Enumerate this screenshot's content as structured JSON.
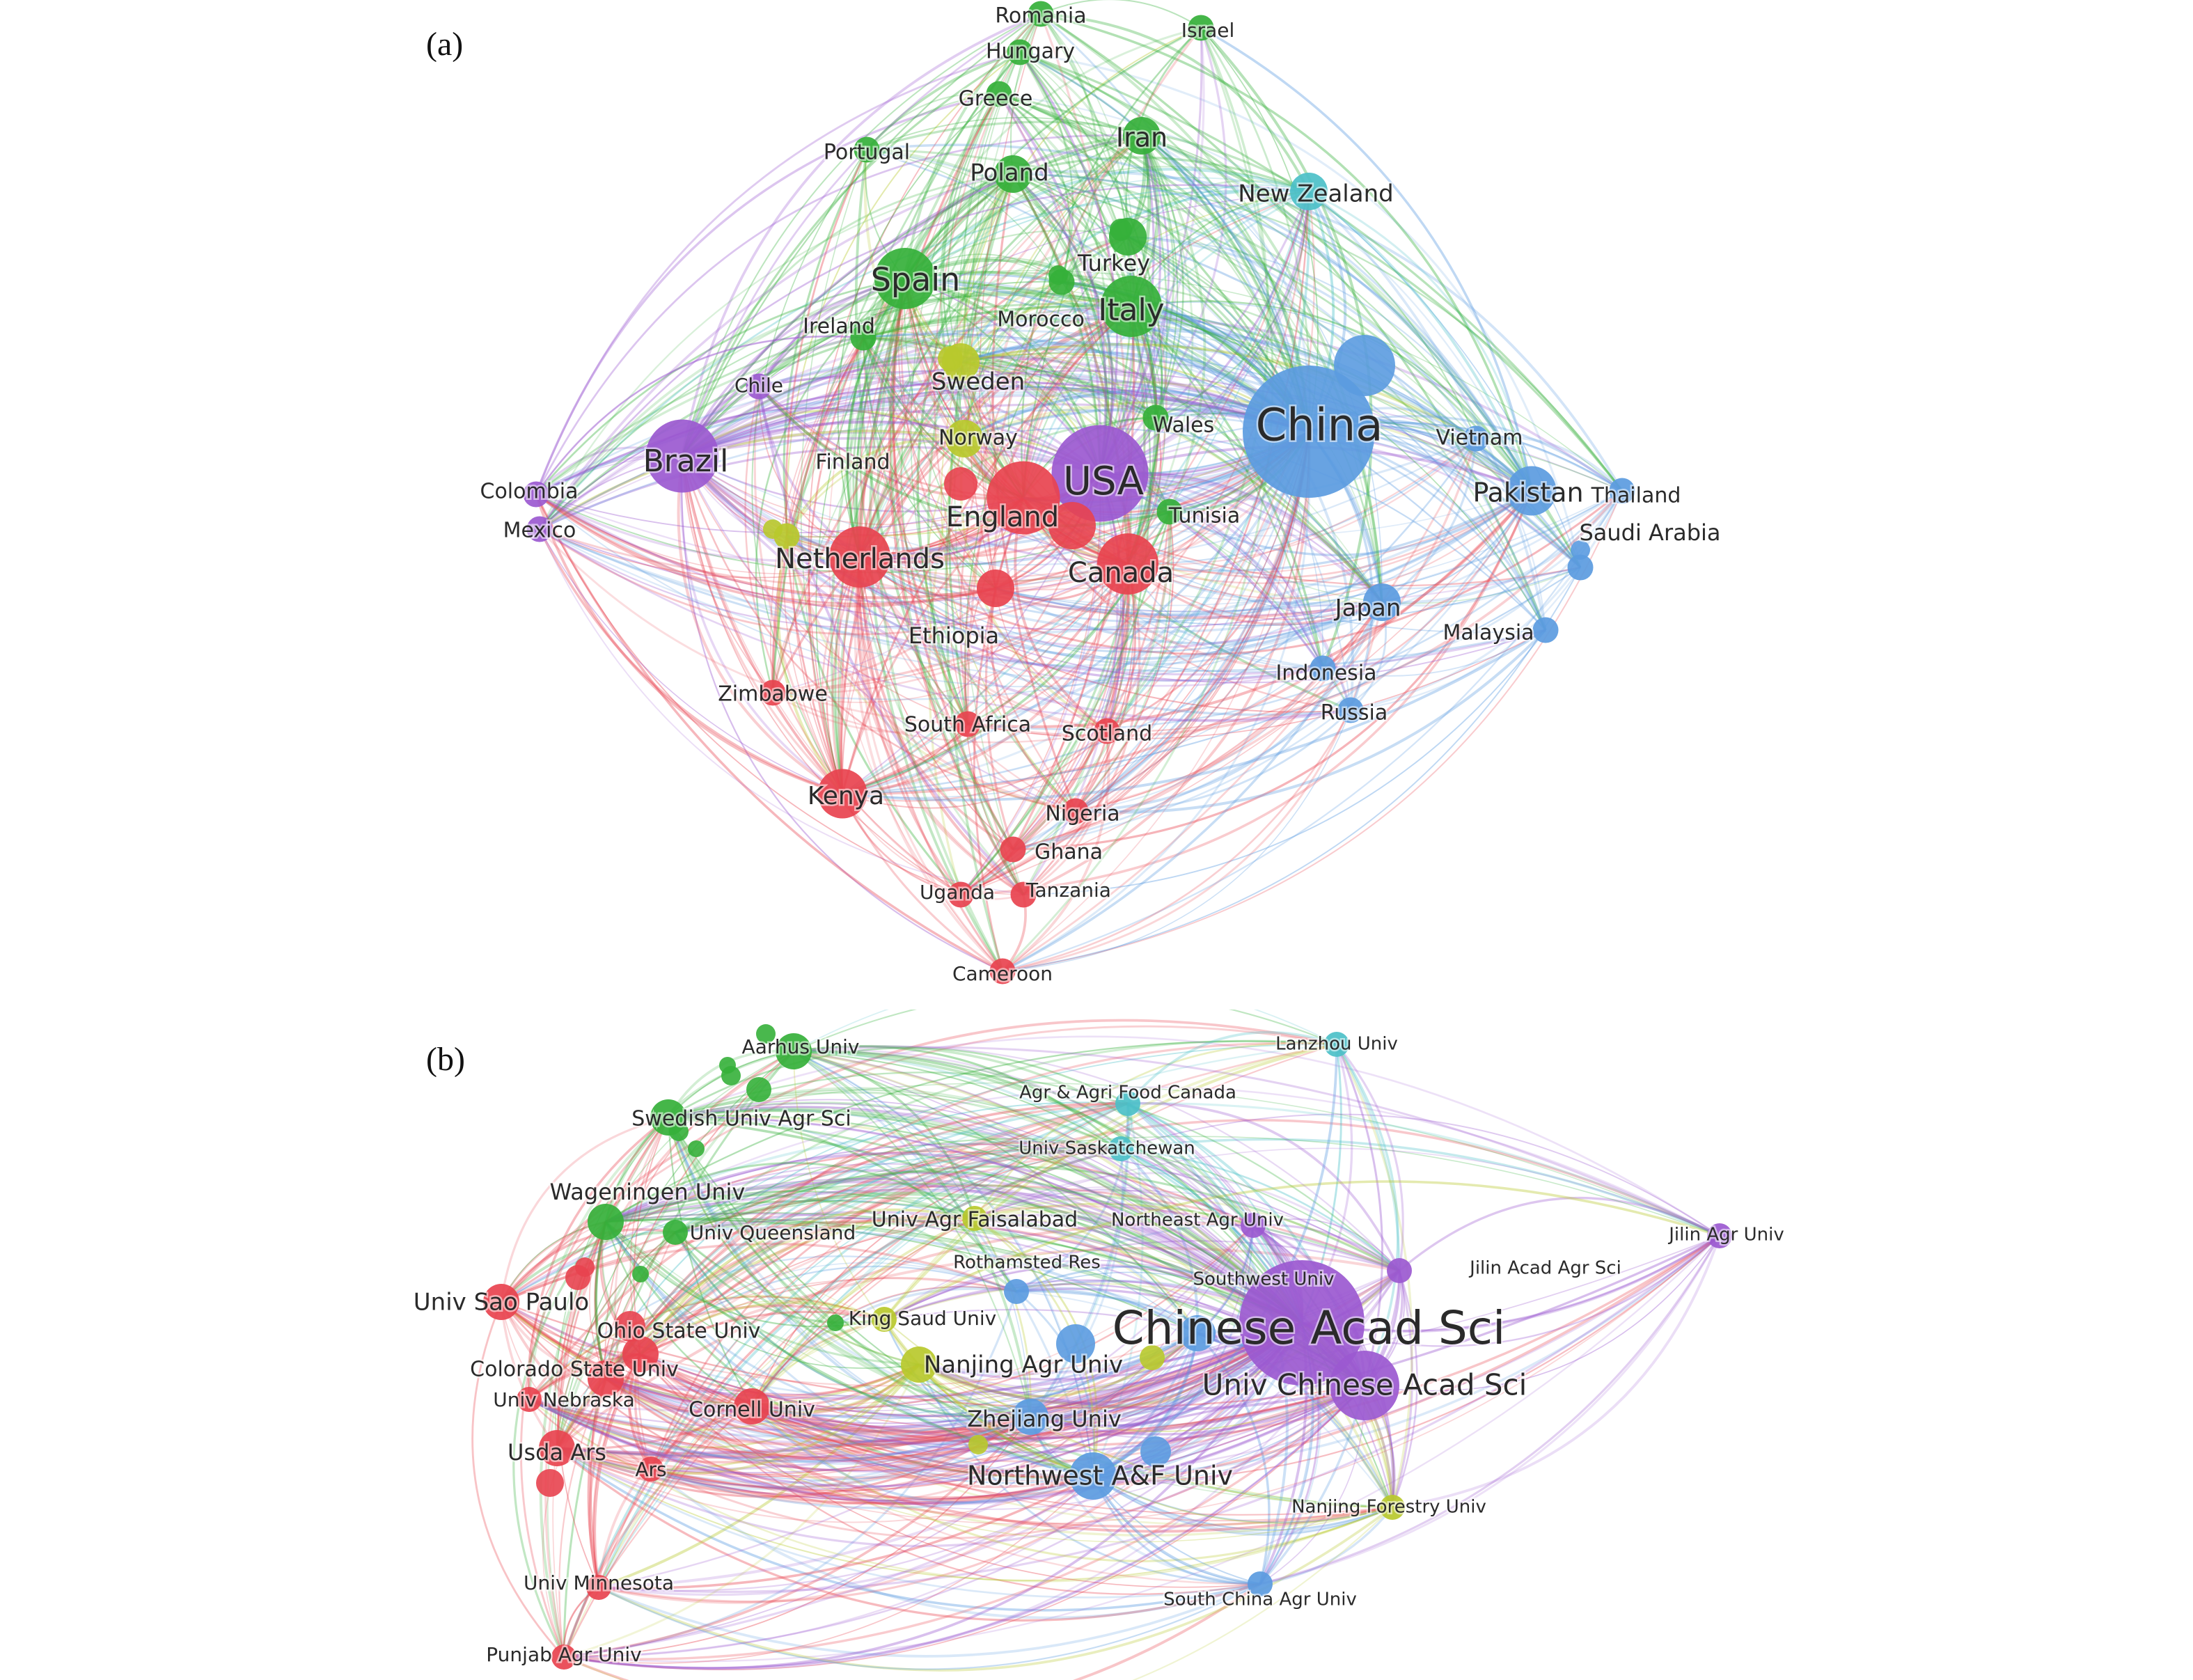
{
  "panels": [
    {
      "label": "(a)",
      "colors": {
        "red": "#e8434f",
        "green": "#35b03a",
        "blue": "#5b9be0",
        "yellow": "#b8c92c",
        "purple": "#9b59d0",
        "cyan": "#4cc0c8"
      },
      "nodes": [
        {
          "id": "china",
          "label": "China",
          "cluster": "blue",
          "w": 10
        },
        {
          "id": "usa",
          "label": "USA",
          "cluster": "purple",
          "w": 7
        },
        {
          "id": "england",
          "label": "England",
          "cluster": "red",
          "w": 5
        },
        {
          "id": "canada",
          "label": "Canada",
          "cluster": "red",
          "w": 4
        },
        {
          "id": "netherlands",
          "label": "Netherlands",
          "cluster": "red",
          "w": 4
        },
        {
          "id": "spain",
          "label": "Spain",
          "cluster": "green",
          "w": 4
        },
        {
          "id": "italy",
          "label": "Italy",
          "cluster": "green",
          "w": 4
        },
        {
          "id": "brazil",
          "label": "Brazil",
          "cluster": "purple",
          "w": 5
        },
        {
          "id": "pakistan",
          "label": "Pakistan",
          "cluster": "blue",
          "w": 3
        },
        {
          "id": "kenya",
          "label": "Kenya",
          "cluster": "red",
          "w": 3
        },
        {
          "id": "ethiopia",
          "label": "Ethiopia",
          "cluster": "red",
          "w": 2
        },
        {
          "id": "iran",
          "label": "Iran",
          "cluster": "green",
          "w": 2
        },
        {
          "id": "poland",
          "label": "Poland",
          "cluster": "green",
          "w": 2
        },
        {
          "id": "turkey",
          "label": "Turkey",
          "cluster": "green",
          "w": 2
        },
        {
          "id": "sweden",
          "label": "Sweden",
          "cluster": "yellow",
          "w": 2
        },
        {
          "id": "norway",
          "label": "Norway",
          "cluster": "yellow",
          "w": 2
        },
        {
          "id": "finland",
          "label": "Finland",
          "cluster": "yellow",
          "w": 1
        },
        {
          "id": "japan",
          "label": "Japan",
          "cluster": "blue",
          "w": 2
        },
        {
          "id": "newzealand",
          "label": "New Zealand",
          "cluster": "cyan",
          "w": 2
        },
        {
          "id": "vietnam",
          "label": "Vietnam",
          "cluster": "blue",
          "w": 1
        },
        {
          "id": "thailand",
          "label": "Thailand",
          "cluster": "blue",
          "w": 1
        },
        {
          "id": "saudiarabia",
          "label": "Saudi Arabia",
          "cluster": "blue",
          "w": 1
        },
        {
          "id": "malaysia",
          "label": "Malaysia",
          "cluster": "blue",
          "w": 1
        },
        {
          "id": "indonesia",
          "label": "Indonesia",
          "cluster": "blue",
          "w": 1
        },
        {
          "id": "russia",
          "label": "Russia",
          "cluster": "blue",
          "w": 1
        },
        {
          "id": "wales",
          "label": "Wales",
          "cluster": "green",
          "w": 1
        },
        {
          "id": "tunisia",
          "label": "Tunisia",
          "cluster": "green",
          "w": 1
        },
        {
          "id": "morocco",
          "label": "Morocco",
          "cluster": "green",
          "w": 1
        },
        {
          "id": "ireland",
          "label": "Ireland",
          "cluster": "green",
          "w": 1
        },
        {
          "id": "portugal",
          "label": "Portugal",
          "cluster": "green",
          "w": 1
        },
        {
          "id": "greece",
          "label": "Greece",
          "cluster": "green",
          "w": 1
        },
        {
          "id": "hungary",
          "label": "Hungary",
          "cluster": "green",
          "w": 1
        },
        {
          "id": "romania",
          "label": "Romania",
          "cluster": "green",
          "w": 1
        },
        {
          "id": "israel",
          "label": "Israel",
          "cluster": "green",
          "w": 1
        },
        {
          "id": "chile",
          "label": "Chile",
          "cluster": "purple",
          "w": 1
        },
        {
          "id": "colombia",
          "label": "Colombia",
          "cluster": "purple",
          "w": 1
        },
        {
          "id": "mexico",
          "label": "Mexico",
          "cluster": "purple",
          "w": 1
        },
        {
          "id": "zimbabwe",
          "label": "Zimbabwe",
          "cluster": "red",
          "w": 1
        },
        {
          "id": "southafrica",
          "label": "South Africa",
          "cluster": "red",
          "w": 1
        },
        {
          "id": "scotland",
          "label": "Scotland",
          "cluster": "red",
          "w": 1
        },
        {
          "id": "nigeria",
          "label": "Nigeria",
          "cluster": "red",
          "w": 1
        },
        {
          "id": "ghana",
          "label": "Ghana",
          "cluster": "red",
          "w": 1
        },
        {
          "id": "uganda",
          "label": "Uganda",
          "cluster": "red",
          "w": 1
        },
        {
          "id": "tanzania",
          "label": "Tanzania",
          "cluster": "red",
          "w": 1
        },
        {
          "id": "cameroon",
          "label": "Cameroon",
          "cluster": "red",
          "w": 1
        }
      ]
    },
    {
      "label": "(b)",
      "colors": {
        "red": "#e8434f",
        "green": "#35b03a",
        "blue": "#5b9be0",
        "yellow": "#b8c92c",
        "purple": "#9b59d0",
        "cyan": "#4cc0c8"
      },
      "nodes": [
        {
          "id": "cas",
          "label": "Chinese Acad Sci",
          "cluster": "purple",
          "w": 10
        },
        {
          "id": "ucas",
          "label": "Univ Chinese Acad Sci",
          "cluster": "purple",
          "w": 5
        },
        {
          "id": "nwafu",
          "label": "Northwest A&F Univ",
          "cluster": "blue",
          "w": 3
        },
        {
          "id": "zju",
          "label": "Zhejiang Univ",
          "cluster": "blue",
          "w": 2
        },
        {
          "id": "njau",
          "label": "Nanjing Agr Univ",
          "cluster": "yellow",
          "w": 2
        },
        {
          "id": "ksu",
          "label": "King Saud Univ",
          "cluster": "yellow",
          "w": 1
        },
        {
          "id": "rothamsted",
          "label": "Rothamsted Res",
          "cluster": "blue",
          "w": 1
        },
        {
          "id": "swu",
          "label": "Southwest Univ",
          "cluster": "blue",
          "w": 2
        },
        {
          "id": "neau",
          "label": "Northeast Agr Univ",
          "cluster": "purple",
          "w": 1
        },
        {
          "id": "uaf",
          "label": "Univ Agr Faisalabad",
          "cluster": "yellow",
          "w": 1
        },
        {
          "id": "usask",
          "label": "Univ Saskatchewan",
          "cluster": "cyan",
          "w": 1
        },
        {
          "id": "aafc",
          "label": "Agr & Agri Food Canada",
          "cluster": "cyan",
          "w": 1
        },
        {
          "id": "lzu",
          "label": "Lanzhou Univ",
          "cluster": "cyan",
          "w": 1
        },
        {
          "id": "jlau",
          "label": "Jilin Agr Univ",
          "cluster": "purple",
          "w": 1
        },
        {
          "id": "jaas",
          "label": "Jilin Acad Agr Sci",
          "cluster": "purple",
          "w": 1
        },
        {
          "id": "njfu",
          "label": "Nanjing Forestry Univ",
          "cluster": "yellow",
          "w": 1
        },
        {
          "id": "scau",
          "label": "South China Agr Univ",
          "cluster": "blue",
          "w": 1
        },
        {
          "id": "aarhus",
          "label": "Aarhus Univ",
          "cluster": "green",
          "w": 2
        },
        {
          "id": "slu",
          "label": "Swedish Univ Agr Sci",
          "cluster": "green",
          "w": 2
        },
        {
          "id": "wur",
          "label": "Wageningen Univ",
          "cluster": "green",
          "w": 2
        },
        {
          "id": "uq",
          "label": "Univ Queensland",
          "cluster": "green",
          "w": 1
        },
        {
          "id": "usp",
          "label": "Univ Sao Paulo",
          "cluster": "red",
          "w": 2
        },
        {
          "id": "osu",
          "label": "Ohio State Univ",
          "cluster": "red",
          "w": 2
        },
        {
          "id": "csu",
          "label": "Colorado State Univ",
          "cluster": "red",
          "w": 2
        },
        {
          "id": "unl",
          "label": "Univ Nebraska",
          "cluster": "red",
          "w": 1
        },
        {
          "id": "cornell",
          "label": "Cornell Univ",
          "cluster": "red",
          "w": 2
        },
        {
          "id": "usda",
          "label": "Usda Ars",
          "cluster": "red",
          "w": 2
        },
        {
          "id": "ars",
          "label": "Ars",
          "cluster": "red",
          "w": 1
        },
        {
          "id": "umn",
          "label": "Univ Minnesota",
          "cluster": "red",
          "w": 1
        },
        {
          "id": "pau",
          "label": "Punjab Agr Univ",
          "cluster": "red",
          "w": 1
        }
      ]
    }
  ]
}
